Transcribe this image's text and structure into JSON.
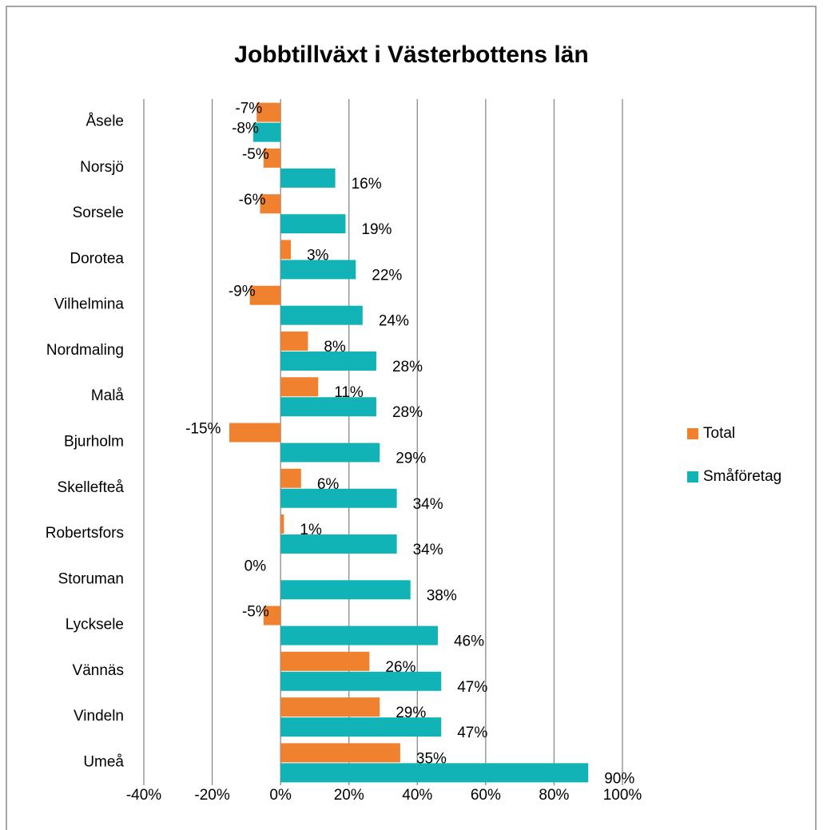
{
  "chart_data": {
    "type": "bar",
    "orientation": "horizontal",
    "title": "Jobbtillväxt i Västerbottens län",
    "categories": [
      "Åsele",
      "Norsjö",
      "Sorsele",
      "Dorotea",
      "Vilhelmina",
      "Nordmaling",
      "Malå",
      "Bjurholm",
      "Skellefteå",
      "Robertsfors",
      "Storuman",
      "Lycksele",
      "Vännäs",
      "Vindeln",
      "Umeå"
    ],
    "series": [
      {
        "name": "Total",
        "color": "#f0812f",
        "values": [
          -7,
          -5,
          -6,
          3,
          -9,
          8,
          11,
          -15,
          6,
          1,
          0,
          -5,
          26,
          29,
          35
        ],
        "value_labels": [
          "-7%",
          "-5%",
          "-6%",
          "3%",
          "-9%",
          "8%",
          "11%",
          "-15%",
          "6%",
          "1%",
          "0%",
          "-5%",
          "26%",
          "29%",
          "35%"
        ]
      },
      {
        "name": "Småföretag",
        "color": "#12b3b6",
        "values": [
          -8,
          16,
          19,
          22,
          24,
          28,
          28,
          29,
          34,
          34,
          38,
          46,
          47,
          47,
          90
        ],
        "value_labels": [
          "-8%",
          "16%",
          "19%",
          "22%",
          "24%",
          "28%",
          "28%",
          "29%",
          "34%",
          "34%",
          "38%",
          "46%",
          "47%",
          "47%",
          "90%"
        ]
      }
    ],
    "xlim": [
      -40,
      100
    ],
    "xticks": [
      {
        "value": -40,
        "label": "-40%"
      },
      {
        "value": -20,
        "label": "-20%"
      },
      {
        "value": 0,
        "label": "0%"
      },
      {
        "value": 20,
        "label": "20%"
      },
      {
        "value": 40,
        "label": "40%"
      },
      {
        "value": 60,
        "label": "60%"
      },
      {
        "value": 80,
        "label": "80%"
      },
      {
        "value": 100,
        "label": "100%"
      }
    ],
    "grid": true,
    "legend": "right"
  }
}
